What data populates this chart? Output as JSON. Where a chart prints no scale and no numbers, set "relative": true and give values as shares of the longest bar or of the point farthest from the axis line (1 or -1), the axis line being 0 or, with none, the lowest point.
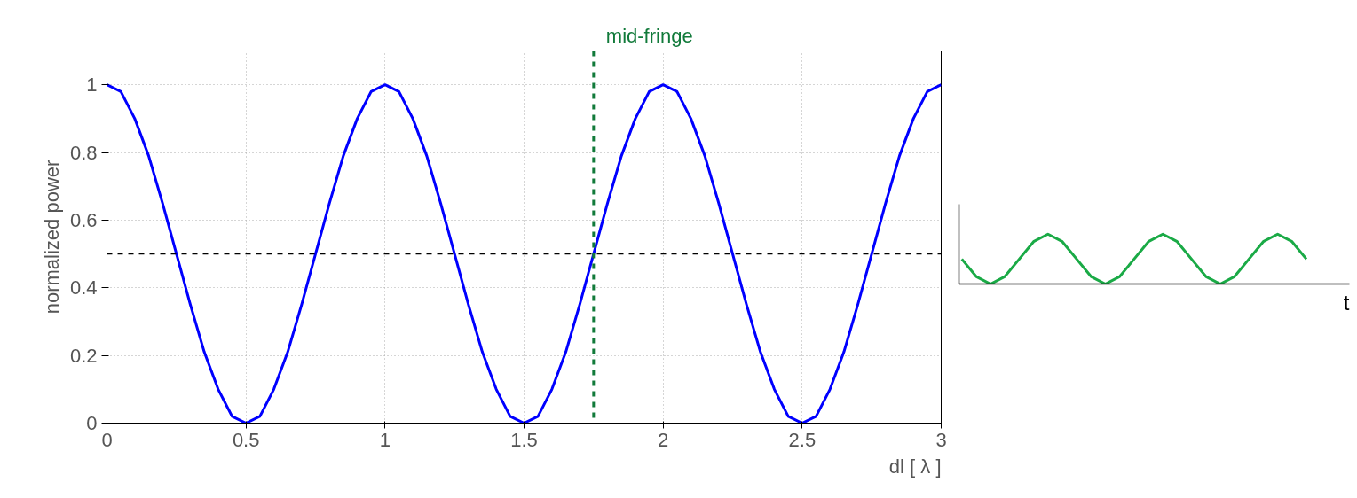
{
  "chart_data": [
    {
      "type": "line",
      "xlabel": "dl [ λ ]",
      "ylabel": "normalized power",
      "x": [
        0,
        0.05,
        0.1,
        0.15,
        0.2,
        0.25,
        0.3,
        0.35,
        0.4,
        0.45,
        0.5,
        0.55,
        0.6,
        0.65,
        0.7,
        0.75,
        0.8,
        0.85,
        0.9,
        0.95,
        1,
        1.05,
        1.1,
        1.15,
        1.2,
        1.25,
        1.3,
        1.35,
        1.4,
        1.45,
        1.5,
        1.55,
        1.6,
        1.65,
        1.7,
        1.75,
        1.8,
        1.85,
        1.9,
        1.95,
        2,
        2.05,
        2.1,
        2.15,
        2.2,
        2.25,
        2.3,
        2.35,
        2.4,
        2.45,
        2.5,
        2.55,
        2.6,
        2.65,
        2.7,
        2.75,
        2.8,
        2.85,
        2.9,
        2.95,
        3
      ],
      "series": [
        {
          "color": "#0000ff",
          "values": [
            1,
            0.98,
            0.9,
            0.79,
            0.65,
            0.5,
            0.35,
            0.21,
            0.1,
            0.02,
            0,
            0.02,
            0.1,
            0.21,
            0.35,
            0.5,
            0.65,
            0.79,
            0.9,
            0.98,
            1,
            0.98,
            0.9,
            0.79,
            0.65,
            0.5,
            0.35,
            0.21,
            0.1,
            0.02,
            0,
            0.02,
            0.1,
            0.21,
            0.35,
            0.5,
            0.65,
            0.79,
            0.9,
            0.98,
            1,
            0.98,
            0.9,
            0.79,
            0.65,
            0.5,
            0.35,
            0.21,
            0.1,
            0.02,
            0,
            0.02,
            0.1,
            0.21,
            0.35,
            0.5,
            0.65,
            0.79,
            0.9,
            0.98,
            1
          ]
        }
      ],
      "xlim": [
        0,
        3
      ],
      "ylim": [
        0,
        1.1
      ],
      "xticks": [
        0,
        0.5,
        1,
        1.5,
        2,
        2.5,
        3
      ],
      "yticks": [
        0,
        0.2,
        0.4,
        0.6,
        0.8,
        1
      ],
      "grid": true,
      "line_style": "solid",
      "ref_lines": [
        {
          "axis": "y",
          "value": 0.5,
          "label": null,
          "color": "#000000",
          "line_style": "dashed"
        },
        {
          "axis": "x",
          "value": 1.75,
          "label": "mid-fringe",
          "color": "#117a3a",
          "line_style": "dashed"
        }
      ]
    },
    {
      "type": "line",
      "relative": true,
      "xlabel": "t",
      "categories": [
        null,
        null,
        null,
        null,
        null,
        null,
        null,
        null,
        null,
        null,
        null,
        null,
        null,
        null,
        null,
        null,
        null,
        null,
        null,
        null,
        null,
        null,
        null,
        null,
        null
      ],
      "series": [
        {
          "color": "#1aaa46",
          "values": [
            0.5,
            0.15,
            0,
            0.15,
            0.5,
            0.85,
            1,
            0.85,
            0.5,
            0.15,
            0,
            0.15,
            0.5,
            0.85,
            1,
            0.85,
            0.5,
            0.15,
            0,
            0.15,
            0.5,
            0.85,
            1,
            0.85,
            0.5
          ]
        }
      ],
      "grid": false,
      "line_style": "solid"
    }
  ]
}
